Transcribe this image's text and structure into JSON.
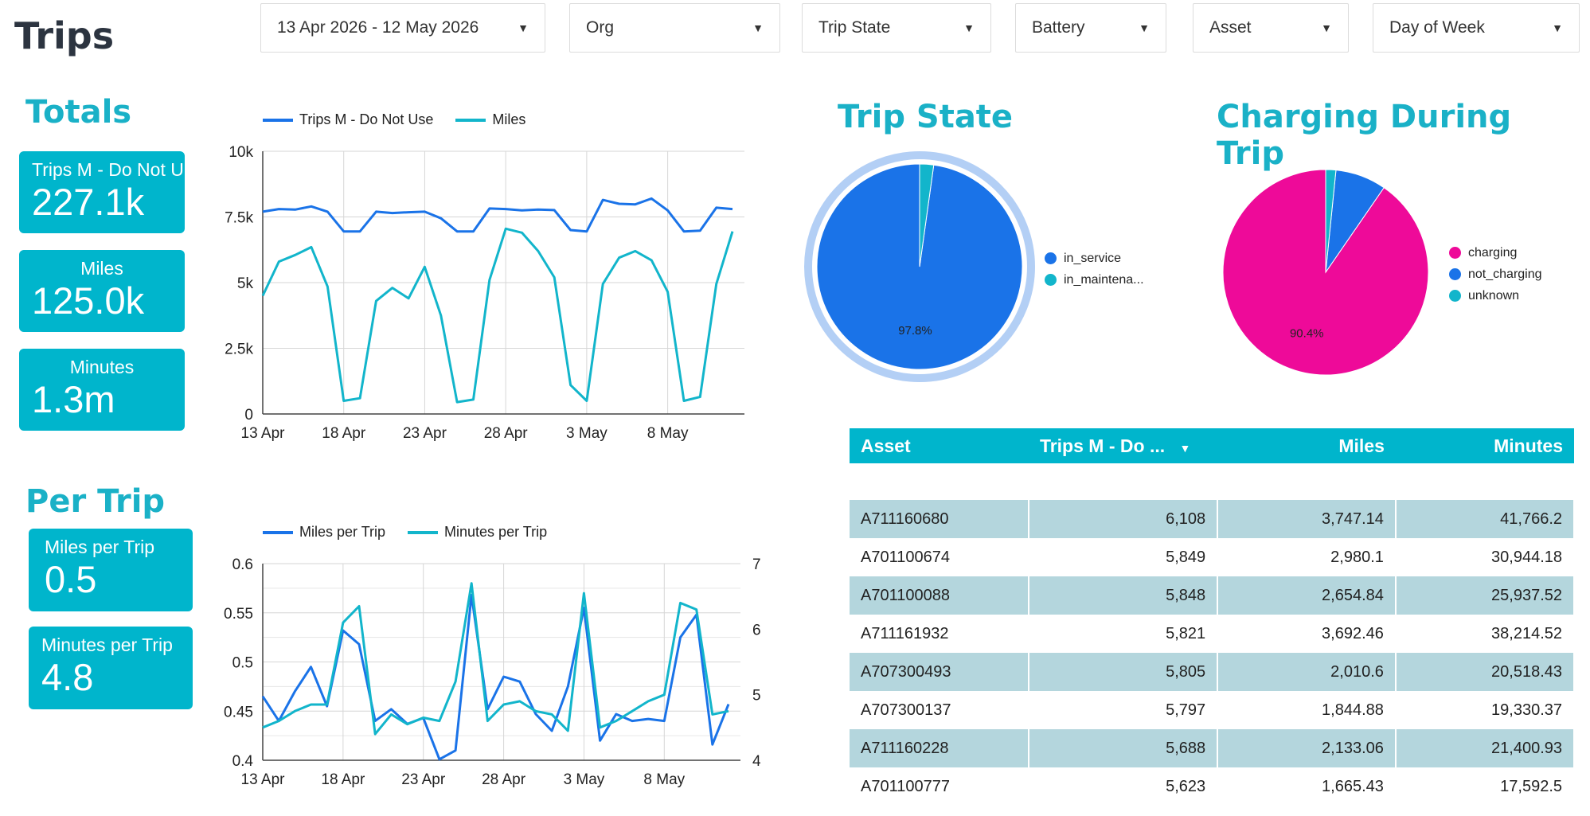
{
  "page": {
    "title": "Trips"
  },
  "filters": [
    {
      "label": "13 Apr 2026 - 12 May 2026"
    },
    {
      "label": "Org"
    },
    {
      "label": "Trip State"
    },
    {
      "label": "Battery"
    },
    {
      "label": "Asset"
    },
    {
      "label": "Day of Week"
    }
  ],
  "totals": {
    "title": "Totals",
    "cards": [
      {
        "label": "Trips M - Do Not U",
        "value": "227.1k"
      },
      {
        "label": "Miles",
        "value": "125.0k"
      },
      {
        "label": "Minutes",
        "value": "1.3m"
      }
    ]
  },
  "per_trip": {
    "title": "Per Trip",
    "cards": [
      {
        "label": "Miles per Trip",
        "value": "0.5"
      },
      {
        "label": "Minutes per Trip",
        "value": "4.8"
      }
    ]
  },
  "colors": {
    "accent": "#00b5cc",
    "blue": "#1a73e8",
    "teal": "#12b5cb",
    "pink": "#ee0a99",
    "title": "#1ab1c7",
    "row": "#b4d6dd"
  },
  "trip_state": {
    "title": "Trip State"
  },
  "charging": {
    "title": "Charging During Trip"
  },
  "chart_data": [
    {
      "type": "line",
      "x_ticks": [
        "13 Apr",
        "18 Apr",
        "23 Apr",
        "28 Apr",
        "3 May",
        "8 May"
      ],
      "ylim": [
        0,
        10000
      ],
      "y_ticks": [
        "0",
        "2.5k",
        "5k",
        "7.5k",
        "10k"
      ],
      "grid": true,
      "legend": "top",
      "series": [
        {
          "name": "Trips M - Do Not Use",
          "values": [
            7700,
            7800,
            7780,
            7900,
            7700,
            6950,
            6950,
            7700,
            7650,
            7680,
            7700,
            7450,
            6950,
            6950,
            7820,
            7800,
            7750,
            7780,
            7760,
            7000,
            6950,
            8150,
            8000,
            7980,
            8200,
            7750,
            6950,
            6980,
            7850,
            7800
          ]
        },
        {
          "name": "Miles",
          "values": [
            4500,
            5800,
            6050,
            6350,
            4850,
            500,
            600,
            4300,
            4800,
            4400,
            5600,
            3750,
            450,
            550,
            5100,
            7050,
            6900,
            6200,
            5200,
            1100,
            500,
            4950,
            5950,
            6200,
            5850,
            4650,
            500,
            650,
            4950,
            6950
          ]
        }
      ]
    },
    {
      "type": "line",
      "x_ticks": [
        "13 Apr",
        "18 Apr",
        "23 Apr",
        "28 Apr",
        "3 May",
        "8 May"
      ],
      "ylim": [
        0.4,
        0.6
      ],
      "y_ticks": [
        "0.4",
        "0.45",
        "0.5",
        "0.55",
        "0.6"
      ],
      "y2lim": [
        4,
        7
      ],
      "y2_ticks": [
        "4",
        "5",
        "6",
        "7"
      ],
      "grid": true,
      "legend": "top",
      "series": [
        {
          "name": "Miles per Trip",
          "axis": "left",
          "values": [
            0.465,
            0.44,
            0.47,
            0.495,
            0.455,
            0.532,
            0.518,
            0.44,
            0.452,
            0.437,
            0.443,
            0.401,
            0.41,
            0.568,
            0.452,
            0.485,
            0.48,
            0.447,
            0.43,
            0.475,
            0.555,
            0.42,
            0.447,
            0.44,
            0.442,
            0.44,
            0.525,
            0.548,
            0.416,
            0.457
          ]
        },
        {
          "name": "Minutes per Trip",
          "axis": "right",
          "values": [
            4.5,
            4.6,
            4.75,
            4.85,
            4.85,
            6.1,
            6.35,
            4.4,
            4.7,
            4.55,
            4.65,
            4.6,
            5.2,
            6.7,
            4.6,
            4.85,
            4.9,
            4.75,
            4.7,
            4.45,
            6.55,
            4.5,
            4.6,
            4.75,
            4.9,
            5.0,
            6.4,
            6.3,
            4.7,
            4.75
          ]
        }
      ]
    },
    {
      "type": "pie",
      "labels": [
        "in_service",
        "in_maintena..."
      ],
      "values": [
        97.8,
        2.2
      ],
      "colors": [
        "#1a73e8",
        "#12b5cb"
      ],
      "data_label": "97.8%",
      "legend": "right"
    },
    {
      "type": "pie",
      "labels": [
        "charging",
        "not_charging",
        "unknown"
      ],
      "values": [
        90.4,
        8.0,
        1.6
      ],
      "colors": [
        "#ee0a99",
        "#1a73e8",
        "#12b5cb"
      ],
      "data_label": "90.4%",
      "legend": "right"
    }
  ],
  "table": {
    "columns": [
      "Asset",
      "Trips M - Do ...",
      "Miles",
      "Minutes"
    ],
    "sort_icon": "sort-desc-icon",
    "rows": [
      [
        "A711160680",
        "6,108",
        "3,747.14",
        "41,766.2"
      ],
      [
        "A701100674",
        "5,849",
        "2,980.1",
        "30,944.18"
      ],
      [
        "A701100088",
        "5,848",
        "2,654.84",
        "25,937.52"
      ],
      [
        "A711161932",
        "5,821",
        "3,692.46",
        "38,214.52"
      ],
      [
        "A707300493",
        "5,805",
        "2,010.6",
        "20,518.43"
      ],
      [
        "A707300137",
        "5,797",
        "1,844.88",
        "19,330.37"
      ],
      [
        "A711160228",
        "5,688",
        "2,133.06",
        "21,400.93"
      ],
      [
        "A701100777",
        "5,623",
        "1,665.43",
        "17,592.5"
      ]
    ]
  }
}
